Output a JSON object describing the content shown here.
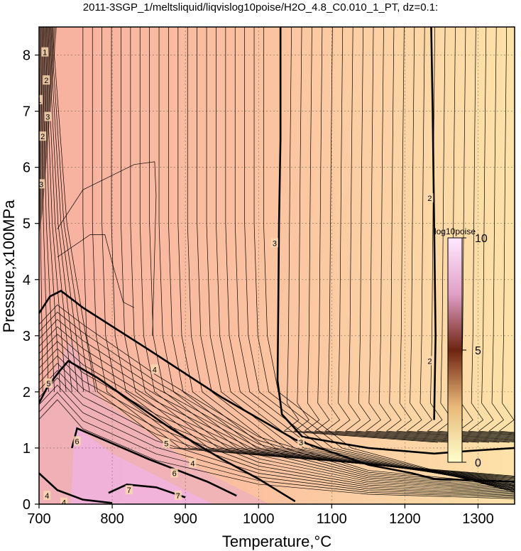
{
  "chart_data": {
    "type": "contour",
    "title": "2011-3SGP_1/meltsliquid/liqvislog10poise/H2O_4.8_C0.010_1_PT, dz=0.1:",
    "xlabel": "Temperature,°C",
    "ylabel": "Pressure,x100MPa",
    "xlim": [
      700,
      1350
    ],
    "ylim": [
      0,
      8.5
    ],
    "x_ticks": [
      700,
      800,
      900,
      1000,
      1100,
      1200,
      1300
    ],
    "y_ticks": [
      0,
      1,
      2,
      3,
      4,
      5,
      6,
      7,
      8
    ],
    "grid": true,
    "colorbar": {
      "label": "log10poise",
      "range": [
        0,
        10
      ],
      "ticks": [
        0,
        5,
        10
      ],
      "colors": [
        "#ffffcc",
        "#e8b878",
        "#6e2410",
        "#e0a0c8",
        "#ffe8ff"
      ]
    },
    "background_colors": {
      "low_T": "#f7b0a0",
      "high_T": "#fde0a8",
      "core": "#f0a0d0"
    },
    "contour_labels": [
      {
        "value": "1",
        "x": 708,
        "y": 8.05
      },
      {
        "value": "2",
        "x": 710,
        "y": 7.55
      },
      {
        "value": "1",
        "x": 700,
        "y": 7.2
      },
      {
        "value": "3",
        "x": 712,
        "y": 6.9
      },
      {
        "value": "2",
        "x": 705,
        "y": 6.55
      },
      {
        "value": "3",
        "x": 703,
        "y": 5.7
      },
      {
        "value": "3",
        "x": 1022,
        "y": 4.65
      },
      {
        "value": "2",
        "x": 1234,
        "y": 5.45
      },
      {
        "value": "2",
        "x": 1234,
        "y": 2.55
      },
      {
        "value": "4",
        "x": 858,
        "y": 2.4
      },
      {
        "value": "5",
        "x": 713,
        "y": 2.15
      },
      {
        "value": "3",
        "x": 1058,
        "y": 1.1
      },
      {
        "value": "5",
        "x": 874,
        "y": 1.08
      },
      {
        "value": "6",
        "x": 752,
        "y": 1.12
      },
      {
        "value": "4",
        "x": 910,
        "y": 0.73
      },
      {
        "value": "6",
        "x": 885,
        "y": 0.55
      },
      {
        "value": "7",
        "x": 823,
        "y": 0.25
      },
      {
        "value": "7",
        "x": 890,
        "y": 0.15
      },
      {
        "value": "4",
        "x": 711,
        "y": 0.15
      },
      {
        "value": "4",
        "x": 734,
        "y": 0.03
      }
    ],
    "bold_contours": [
      {
        "level": 2,
        "points": [
          [
            1236,
            8.5
          ],
          [
            1238,
            7
          ],
          [
            1240,
            5
          ],
          [
            1242,
            3
          ],
          [
            1240,
            1.5
          ]
        ]
      },
      {
        "level": 3,
        "points": [
          [
            1030,
            8.5
          ],
          [
            1030,
            6.5
          ],
          [
            1028,
            5
          ],
          [
            1027,
            3.5
          ],
          [
            1026,
            2.2
          ],
          [
            1032,
            1.6
          ],
          [
            1060,
            1.2
          ],
          [
            1150,
            1.0
          ],
          [
            1240,
            0.9
          ],
          [
            1290,
            0.95
          ],
          [
            1350,
            1.0
          ]
        ]
      },
      {
        "level": 4,
        "points": [
          [
            700,
            3.4
          ],
          [
            715,
            3.7
          ],
          [
            730,
            3.8
          ],
          [
            760,
            3.5
          ],
          [
            850,
            2.75
          ],
          [
            950,
            1.9
          ],
          [
            1050,
            1.15
          ],
          [
            1150,
            0.7
          ],
          [
            1210,
            0.55
          ],
          [
            1240,
            0.45
          ],
          [
            1350,
            0.4
          ]
        ]
      },
      {
        "level": 5,
        "points": [
          [
            700,
            1.8
          ],
          [
            712,
            2.1
          ],
          [
            730,
            2.4
          ],
          [
            740,
            2.55
          ],
          [
            780,
            2.25
          ],
          [
            880,
            1.35
          ],
          [
            950,
            0.8
          ],
          [
            1000,
            0.45
          ],
          [
            1050,
            0.05
          ]
        ]
      },
      {
        "level": 6,
        "points": [
          [
            745,
            1.0
          ],
          [
            752,
            1.35
          ],
          [
            770,
            1.25
          ],
          [
            850,
            0.8
          ],
          [
            930,
            0.4
          ],
          [
            970,
            0.15
          ]
        ]
      },
      {
        "level": 7,
        "points": [
          [
            795,
            0.2
          ],
          [
            820,
            0.35
          ],
          [
            860,
            0.3
          ],
          [
            900,
            0.12
          ]
        ]
      },
      {
        "level": 3,
        "points": [
          [
            700,
            0.55
          ],
          [
            725,
            0.25
          ],
          [
            760,
            0.08
          ],
          [
            800,
            0.02
          ]
        ]
      }
    ]
  }
}
